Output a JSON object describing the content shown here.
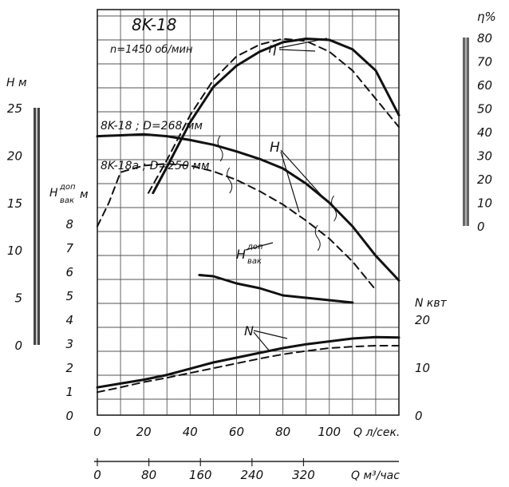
{
  "chart_data": {
    "type": "line",
    "title": "8K-18",
    "subtitle": "n=1450 об/мин",
    "xlabel": "Q л/сек.",
    "x_ticks": [
      "0",
      "20",
      "40",
      "60",
      "80",
      "100"
    ],
    "xlim": [
      0,
      130
    ],
    "xlabel2": "Q м³/час",
    "x2_ticks": [
      "0",
      "80",
      "160",
      "240",
      "320"
    ],
    "axes": {
      "H": {
        "label": "H м",
        "range": [
          0,
          25
        ],
        "ticks": [
          "0",
          "5",
          "10",
          "15",
          "20",
          "25"
        ]
      },
      "Hvak": {
        "label_main": "H",
        "label_sup": "доп",
        "label_sub": "вак",
        "unit": "м",
        "range": [
          0,
          8
        ],
        "ticks": [
          "0",
          "1",
          "2",
          "3",
          "4",
          "5",
          "6",
          "7",
          "8"
        ]
      },
      "eta": {
        "label": "η%",
        "range": [
          0,
          80
        ],
        "ticks": [
          "0",
          "10",
          "20",
          "30",
          "40",
          "50",
          "60",
          "70",
          "80"
        ]
      },
      "N": {
        "label": "N квт",
        "range": [
          0,
          20
        ],
        "ticks": [
          "0",
          "10",
          "20"
        ]
      }
    },
    "curve_labels": {
      "eta": "η",
      "H": "H",
      "Hvak_main": "H",
      "Hvak_sup": "доп",
      "Hvak_sub": "вак",
      "N": "N"
    },
    "series_labels": {
      "D268": "8K-18 ; D=268 мм",
      "D250": "8K-18a ; D=250 мм"
    },
    "series": [
      {
        "axis": "H",
        "style": "solid",
        "points": [
          [
            0,
            22
          ],
          [
            10,
            22.1
          ],
          [
            20,
            22.2
          ],
          [
            30,
            22
          ],
          [
            40,
            21.6
          ],
          [
            50,
            21.1
          ],
          [
            60,
            20.4
          ],
          [
            70,
            19.6
          ],
          [
            80,
            18.6
          ],
          [
            90,
            17
          ],
          [
            100,
            15
          ],
          [
            110,
            12.5
          ],
          [
            120,
            9.4
          ],
          [
            130,
            6.8
          ]
        ]
      },
      {
        "axis": "H",
        "style": "dashed",
        "points": [
          [
            0,
            12.5
          ],
          [
            5,
            15
          ],
          [
            10,
            18.2
          ],
          [
            20,
            18.9
          ],
          [
            30,
            19.1
          ],
          [
            40,
            18.9
          ],
          [
            50,
            18.3
          ],
          [
            60,
            17.4
          ],
          [
            70,
            16.2
          ],
          [
            80,
            14.8
          ],
          [
            90,
            13.1
          ],
          [
            100,
            11.2
          ],
          [
            110,
            8.8
          ],
          [
            120,
            5.8
          ]
        ]
      },
      {
        "axis": "Hvak",
        "style": "solid",
        "points": [
          [
            44,
            5.85
          ],
          [
            50,
            5.8
          ],
          [
            60,
            5.5
          ],
          [
            70,
            5.3
          ],
          [
            80,
            5
          ],
          [
            90,
            4.9
          ],
          [
            100,
            4.8
          ],
          [
            110,
            4.7
          ]
        ]
      },
      {
        "axis": "eta",
        "style": "solid",
        "points": [
          [
            24,
            14
          ],
          [
            30,
            25
          ],
          [
            40,
            44
          ],
          [
            50,
            59
          ],
          [
            60,
            68
          ],
          [
            70,
            74
          ],
          [
            80,
            78
          ],
          [
            90,
            79.5
          ],
          [
            100,
            79
          ],
          [
            110,
            75
          ],
          [
            120,
            66
          ],
          [
            130,
            47
          ]
        ]
      },
      {
        "axis": "eta",
        "style": "dashed",
        "points": [
          [
            22,
            14
          ],
          [
            30,
            28
          ],
          [
            40,
            47
          ],
          [
            50,
            62
          ],
          [
            60,
            72
          ],
          [
            70,
            77
          ],
          [
            80,
            79.5
          ],
          [
            90,
            78.5
          ],
          [
            100,
            74
          ],
          [
            110,
            66
          ],
          [
            120,
            54
          ],
          [
            130,
            42
          ]
        ]
      },
      {
        "axis": "N",
        "style": "solid",
        "points": [
          [
            0,
            5.8
          ],
          [
            10,
            6.6
          ],
          [
            20,
            7.4
          ],
          [
            30,
            8.4
          ],
          [
            40,
            9.7
          ],
          [
            50,
            11
          ],
          [
            60,
            12
          ],
          [
            70,
            13
          ],
          [
            80,
            14
          ],
          [
            90,
            14.8
          ],
          [
            100,
            15.4
          ],
          [
            110,
            16
          ],
          [
            120,
            16.3
          ],
          [
            130,
            16.2
          ]
        ]
      },
      {
        "axis": "N",
        "style": "dashed",
        "points": [
          [
            0,
            4.8
          ],
          [
            10,
            5.8
          ],
          [
            20,
            6.9
          ],
          [
            30,
            7.8
          ],
          [
            40,
            8.8
          ],
          [
            50,
            9.8
          ],
          [
            60,
            10.8
          ],
          [
            70,
            11.8
          ],
          [
            80,
            12.7
          ],
          [
            90,
            13.4
          ],
          [
            100,
            14
          ],
          [
            110,
            14.3
          ],
          [
            120,
            14.5
          ],
          [
            130,
            14.5
          ]
        ]
      }
    ]
  }
}
